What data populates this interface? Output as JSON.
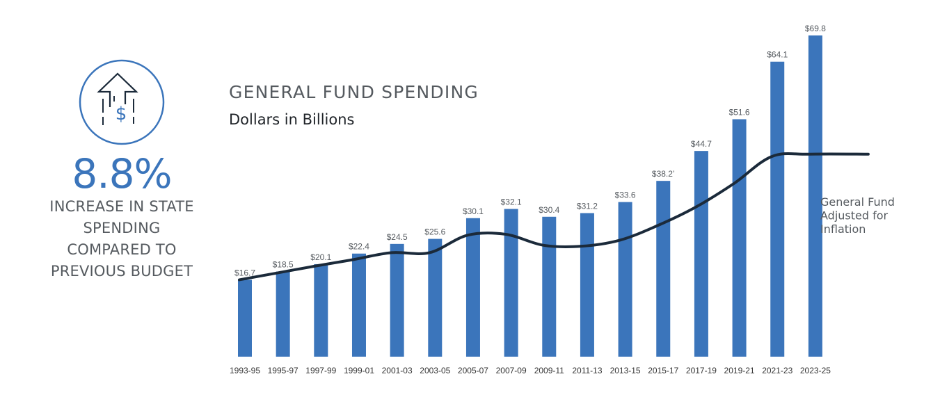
{
  "stat": {
    "icon": "dollar-up-arrow-icon",
    "value": "8.8%",
    "caption_lines": [
      "INCREASE IN STATE",
      "SPENDING",
      "COMPARED TO",
      "PREVIOUS BUDGET"
    ]
  },
  "chart_data": {
    "type": "bar",
    "title": "GENERAL FUND SPENDING",
    "subtitle": "Dollars in Billions",
    "categories": [
      "1993-95",
      "1995-97",
      "1997-99",
      "1999-01",
      "2001-03",
      "2003-05",
      "2005-07",
      "2007-09",
      "2009-11",
      "2011-13",
      "2013-15",
      "2015-17",
      "2017-19",
      "2019-21",
      "2021-23",
      "2023-25"
    ],
    "series": [
      {
        "values": [
          16.7,
          18.5,
          20.1,
          22.4,
          24.5,
          25.6,
          30.1,
          32.1,
          30.4,
          31.2,
          33.6,
          38.2,
          44.7,
          51.6,
          64.1,
          69.8
        ],
        "data_labels": [
          "$16.7",
          "$18.5",
          "$20.1",
          "$22.4",
          "$24.5",
          "$25.6",
          "$30.1",
          "$32.1",
          "$30.4",
          "$31.2",
          "$33.6",
          "$38.2’",
          "$44.7",
          "$51.6",
          "$64.1",
          "$69.8"
        ],
        "color": "#3b75bb"
      },
      {
        "name": "General Fund Adjusted for Inflation",
        "type": "line",
        "values": [
          16.7,
          18.2,
          19.7,
          21.1,
          22.6,
          22.6,
          26.4,
          26.6,
          24.2,
          24.0,
          25.3,
          28.5,
          32.5,
          37.6,
          43.5,
          44.0
        ],
        "end_extension": 44.0,
        "color": "#1b2a3a"
      }
    ],
    "legend_lines": [
      "General Fund",
      "Adjusted for",
      "Inflation"
    ],
    "ylim": [
      0,
      69.8
    ],
    "grid": false
  }
}
